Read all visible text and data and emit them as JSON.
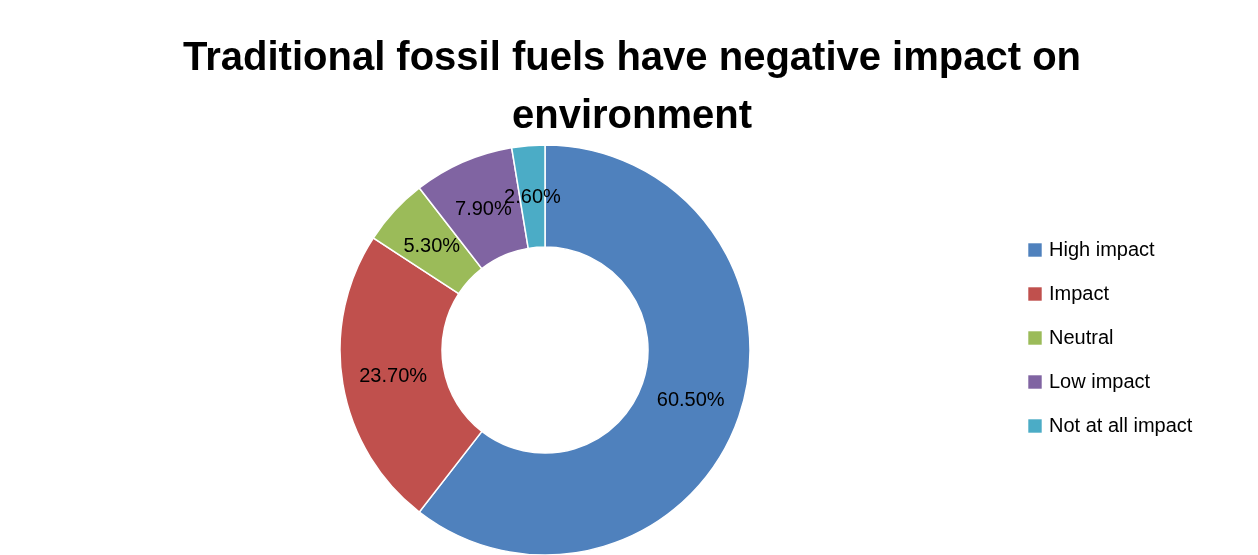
{
  "chart_data": {
    "type": "donut",
    "title": "Traditional fossil fuels have negative impact on environment",
    "categories": [
      "High impact",
      "Impact",
      "Neutral",
      "Low impact",
      "Not at all impact"
    ],
    "values": [
      60.5,
      23.7,
      5.3,
      7.9,
      2.6
    ],
    "value_labels": [
      "60.50%",
      "23.70%",
      "5.30%",
      "7.90%",
      "2.60%"
    ],
    "colors": [
      "#4f81bd",
      "#c0504d",
      "#9bbb59",
      "#8064a2",
      "#4bacc6"
    ],
    "legend": "right"
  }
}
